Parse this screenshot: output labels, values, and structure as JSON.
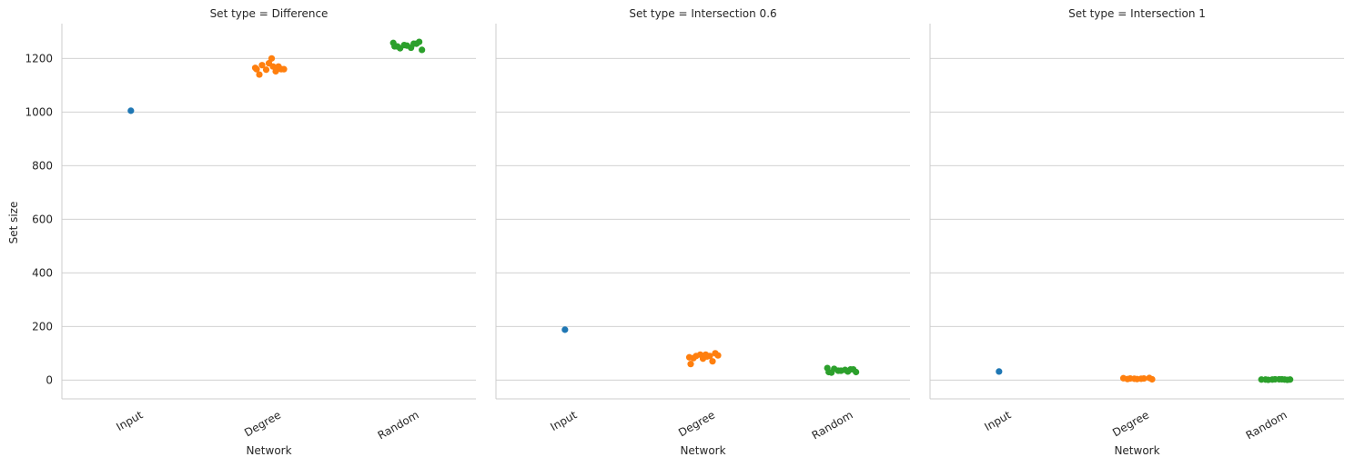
{
  "chart_data": {
    "type": "scatter",
    "kind": "strip",
    "facet_variable": "Set type",
    "xlabel": "Network",
    "ylabel": "Set size",
    "categories": [
      "Input",
      "Degree",
      "Random"
    ],
    "y_ticks": [
      0,
      200,
      400,
      600,
      800,
      1000,
      1200
    ],
    "ylim": [
      -70,
      1330
    ],
    "grid": "horizontal",
    "colors": {
      "Input": "#1f77b4",
      "Degree": "#ff7f0e",
      "Random": "#2ca02c"
    },
    "panels": [
      {
        "title": "Set type = Difference",
        "points": {
          "Input": [
            1005
          ],
          "Degree": [
            1140,
            1152,
            1158,
            1160,
            1165,
            1170,
            1160,
            1175,
            1182,
            1170,
            1160,
            1200
          ],
          "Random": [
            1245,
            1255,
            1250,
            1262,
            1258,
            1240,
            1232,
            1238,
            1248,
            1255,
            1245
          ]
        }
      },
      {
        "title": "Set type = Intersection 0.6",
        "points": {
          "Input": [
            188
          ],
          "Degree": [
            82,
            90,
            95,
            100,
            85,
            88,
            92,
            90,
            80,
            70,
            60,
            95
          ],
          "Random": [
            28,
            32,
            35,
            40,
            45,
            38,
            30,
            42,
            35,
            40,
            30
          ]
        }
      },
      {
        "title": "Set type = Intersection 1",
        "points": {
          "Input": [
            32
          ],
          "Degree": [
            4,
            6,
            5,
            8,
            7,
            5,
            3,
            6,
            4
          ],
          "Random": [
            2,
            3,
            2,
            1,
            2,
            3,
            2,
            1,
            3,
            2
          ]
        }
      }
    ]
  }
}
